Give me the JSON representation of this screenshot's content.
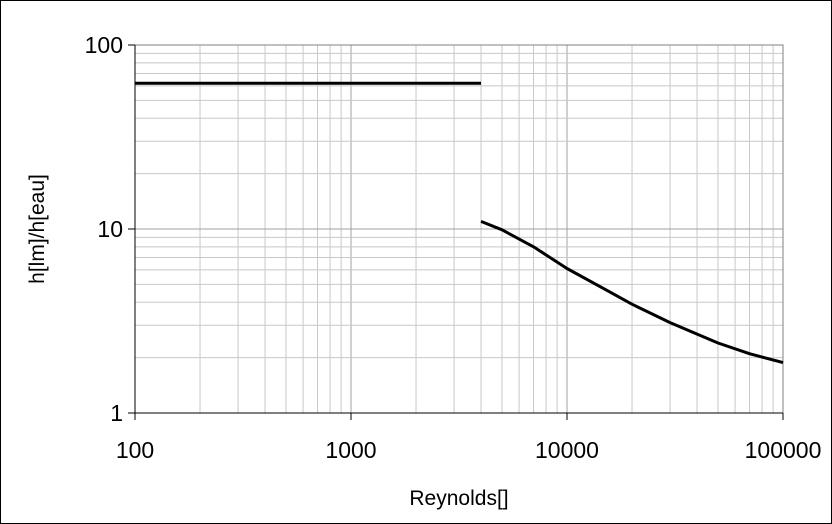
{
  "chart_data": {
    "type": "line",
    "title": "",
    "xlabel": "Reynolds[]",
    "ylabel": "h[lm]/h[eau]",
    "x_scale": "log",
    "y_scale": "log",
    "xlim": [
      100,
      100000
    ],
    "ylim": [
      1,
      100
    ],
    "x_ticks": [
      "100",
      "1000",
      "10000",
      "100000"
    ],
    "y_ticks": [
      "1",
      "10",
      "100"
    ],
    "grid": true,
    "legend": "none",
    "line_color": "#000000",
    "series": [
      {
        "x": [
          100,
          4000
        ],
        "y": [
          62,
          62
        ]
      },
      {
        "x": [
          4000,
          5000,
          7000,
          10000,
          15000,
          20000,
          30000,
          50000,
          70000,
          100000
        ],
        "y": [
          11,
          9.9,
          8.0,
          6.1,
          4.7,
          3.9,
          3.1,
          2.4,
          2.1,
          1.88
        ]
      }
    ]
  }
}
